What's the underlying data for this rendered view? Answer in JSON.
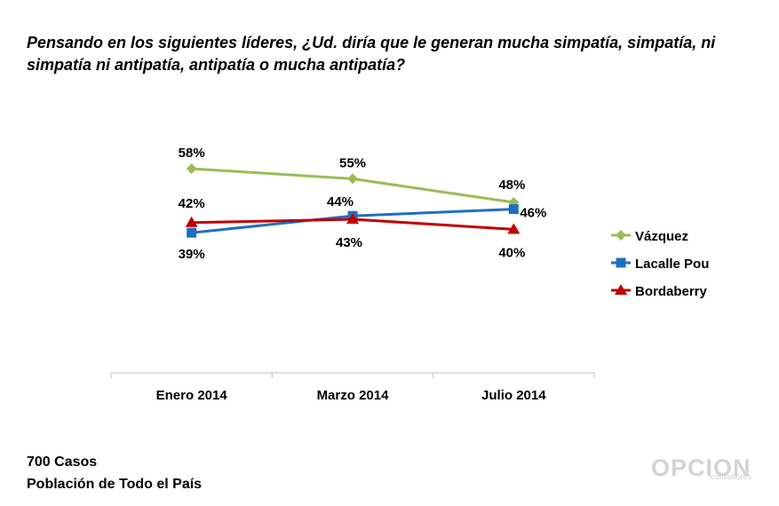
{
  "title": "Pensando en los siguientes líderes, ¿Ud. diría que le generan mucha simpatía, simpatía, ni simpatía ni antipatía, antipatía o mucha antipatía?",
  "footer": {
    "cases": "700 Casos",
    "population": "Población de Todo el País"
  },
  "logo": {
    "text": "OPCION",
    "sub": "consultores"
  },
  "chart_data": {
    "type": "line",
    "categories": [
      "Enero 2014",
      "Marzo 2014",
      "Julio 2014"
    ],
    "series": [
      {
        "name": "Vázquez",
        "values": [
          58,
          55,
          48
        ],
        "labels": [
          "58%",
          "55%",
          "48%"
        ],
        "color": "#9bbb59",
        "marker": "diamond"
      },
      {
        "name": "Lacalle Pou",
        "values": [
          39,
          44,
          46
        ],
        "labels": [
          "39%",
          "44%",
          "46%"
        ],
        "color": "#1f6fbf",
        "marker": "square"
      },
      {
        "name": "Bordaberry",
        "values": [
          42,
          43,
          40
        ],
        "labels": [
          "42%",
          "43%",
          "40%"
        ],
        "color": "#c00000",
        "marker": "triangle"
      }
    ],
    "legend_position": "right",
    "grid": false
  }
}
